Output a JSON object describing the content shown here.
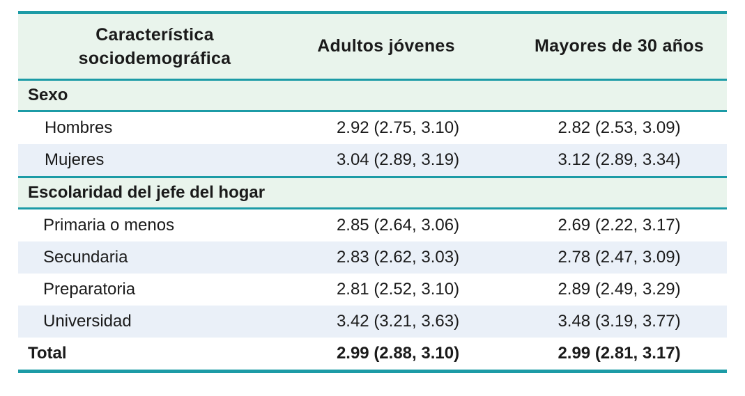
{
  "table": {
    "headers": [
      "Característica\nsociodemográfica",
      "Adultos jóvenes",
      "Mayores de 30 años"
    ],
    "header_line1": "Característica",
    "header_line2": "sociodemográfica",
    "sections": [
      {
        "title": "Sexo",
        "rows": [
          {
            "label": "Hombres",
            "young": "2.92 (2.75, 3.10)",
            "older": "2.82 (2.53, 3.09)"
          },
          {
            "label": "Mujeres",
            "young": "3.04 (2.89, 3.19)",
            "older": "3.12 (2.89, 3.34)"
          }
        ]
      },
      {
        "title": "Escolaridad del jefe del hogar",
        "rows": [
          {
            "label": "Primaria o menos",
            "young": "2.85 (2.64, 3.06)",
            "older": "2.69 (2.22, 3.17)"
          },
          {
            "label": "Secundaria",
            "young": "2.83 (2.62, 3.03)",
            "older": "2.78 (2.47, 3.09)"
          },
          {
            "label": "Preparatoria",
            "young": "2.81 (2.52, 3.10)",
            "older": "2.89 (2.49, 3.29)"
          },
          {
            "label": "Universidad",
            "young": "3.42 (3.21, 3.63)",
            "older": "3.48 (3.19, 3.77)"
          }
        ]
      }
    ],
    "total": {
      "label": "Total",
      "young": "2.99 (2.88, 3.10)",
      "older": "2.99 (2.81, 3.17)"
    }
  },
  "colors": {
    "rule": "#1c9ba6",
    "header_bg": "#e9f4ec",
    "alt_row_bg": "#eaf0f8"
  }
}
